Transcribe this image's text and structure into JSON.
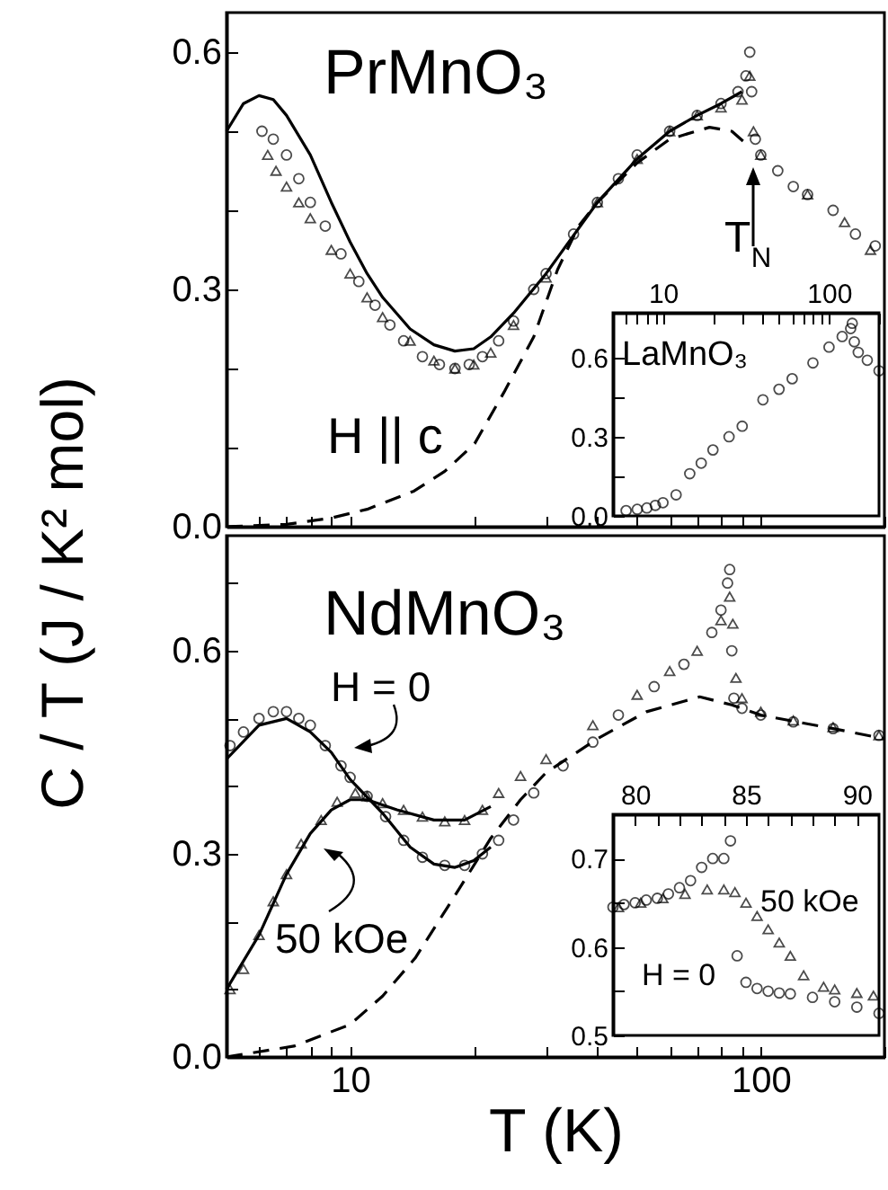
{
  "chart_data": [
    {
      "type": "scatter",
      "title": "PrMnO₃",
      "ylabel": "C / T (J / K² mol)",
      "annotations": [
        "H || c",
        "T$_{N}$"
      ],
      "log": "x",
      "tick_labels": "y",
      "xlim": [
        5,
        200
      ],
      "ylim": [
        0,
        0.65
      ],
      "xticks": [
        {
          "value": 5,
          "label": null
        },
        {
          "value": 6,
          "label": null
        },
        {
          "value": 7,
          "label": null
        },
        {
          "value": 8,
          "label": null
        },
        {
          "value": 9,
          "label": null
        },
        10,
        {
          "value": 20,
          "label": null
        },
        {
          "value": 30,
          "label": null
        },
        {
          "value": 40,
          "label": null
        },
        {
          "value": 50,
          "label": null
        },
        {
          "value": 60,
          "label": null
        },
        {
          "value": 70,
          "label": null
        },
        {
          "value": 80,
          "label": null
        },
        {
          "value": 90,
          "label": null
        },
        100,
        {
          "value": 200,
          "label": null
        }
      ],
      "yticks": [
        {
          "value": 0,
          "label": "0.0"
        },
        {
          "value": 0.1,
          "label": null
        },
        {
          "value": 0.2,
          "label": null
        },
        0.3,
        {
          "value": 0.4,
          "label": null
        },
        {
          "value": 0.5,
          "label": null
        },
        0.6
      ],
      "series": [
        {
          "type": "scatter",
          "marker": "circle",
          "color": "#000000",
          "x": [
            6.1,
            6.5,
            7,
            7.5,
            8,
            8.7,
            9.5,
            10.5,
            11.5,
            12.5,
            13.5,
            15,
            16.5,
            18,
            19.5,
            21,
            23,
            25,
            28,
            30,
            35,
            40,
            45,
            50,
            60,
            70,
            80,
            88,
            92,
            94,
            95,
            97,
            100,
            110,
            120,
            130,
            150,
            170,
            190
          ],
          "values": [
            0.5,
            0.49,
            0.47,
            0.44,
            0.41,
            0.38,
            0.345,
            0.31,
            0.28,
            0.255,
            0.235,
            0.215,
            0.205,
            0.2,
            0.205,
            0.215,
            0.235,
            0.26,
            0.3,
            0.32,
            0.37,
            0.41,
            0.44,
            0.47,
            0.5,
            0.52,
            0.535,
            0.55,
            0.57,
            0.6,
            0.55,
            0.49,
            0.47,
            0.45,
            0.43,
            0.42,
            0.4,
            0.37,
            0.355
          ]
        },
        {
          "type": "scatter",
          "marker": "triangle",
          "color": "#000000",
          "x": [
            6.3,
            6.6,
            7,
            7.5,
            8,
            9,
            10,
            11,
            12,
            14,
            16,
            18,
            20,
            22,
            25,
            30,
            40,
            50,
            60,
            70,
            80,
            90,
            94,
            96,
            100,
            130,
            160,
            185
          ],
          "values": [
            0.47,
            0.45,
            0.43,
            0.41,
            0.39,
            0.35,
            0.32,
            0.29,
            0.265,
            0.235,
            0.21,
            0.2,
            0.205,
            0.22,
            0.255,
            0.315,
            0.41,
            0.465,
            0.5,
            0.52,
            0.53,
            0.54,
            0.57,
            0.5,
            0.47,
            0.42,
            0.385,
            0.35
          ]
        },
        {
          "type": "line",
          "line_style": "solid",
          "color": "#000000",
          "x": [
            5,
            5.5,
            6,
            6.5,
            7,
            8,
            9,
            10,
            11,
            12,
            14,
            16,
            18,
            20,
            22,
            25,
            30,
            40,
            50,
            60,
            70,
            80,
            90
          ],
          "values": [
            0.5,
            0.535,
            0.545,
            0.54,
            0.52,
            0.47,
            0.41,
            0.36,
            0.32,
            0.29,
            0.25,
            0.23,
            0.222,
            0.225,
            0.24,
            0.27,
            0.32,
            0.41,
            0.465,
            0.5,
            0.52,
            0.535,
            0.55
          ]
        },
        {
          "type": "line",
          "line_style": "dashed",
          "color": "#000000",
          "x": [
            5,
            7,
            9,
            11,
            14.3,
            17,
            20.1,
            23.7,
            28,
            32,
            36,
            40,
            50,
            60,
            75,
            85,
            94
          ],
          "values": [
            0,
            0.003,
            0.011,
            0.022,
            0.045,
            0.07,
            0.105,
            0.17,
            0.24,
            0.325,
            0.38,
            0.41,
            0.46,
            0.49,
            0.505,
            0.5,
            0.48
          ]
        }
      ]
    },
    {
      "type": "scatter",
      "title": "LaMnO₃",
      "log": "x",
      "xlim": [
        5,
        200
      ],
      "ylim": [
        0,
        0.77
      ],
      "xticks": [
        {
          "value": 5,
          "label": null
        },
        {
          "value": 6,
          "label": null
        },
        {
          "value": 7,
          "label": null
        },
        {
          "value": 8,
          "label": null
        },
        {
          "value": 9,
          "label": null
        },
        10,
        {
          "value": 20,
          "label": null
        },
        {
          "value": 30,
          "label": null
        },
        {
          "value": 40,
          "label": null
        },
        {
          "value": 50,
          "label": null
        },
        {
          "value": 60,
          "label": null
        },
        {
          "value": 70,
          "label": null
        },
        {
          "value": 80,
          "label": null
        },
        {
          "value": 90,
          "label": null
        },
        100,
        {
          "value": 200,
          "label": null
        }
      ],
      "yticks": [
        {
          "value": 0,
          "label": "0.0"
        },
        {
          "value": 0.15,
          "label": null
        },
        0.3,
        {
          "value": 0.45,
          "label": null
        },
        0.6
      ],
      "series": [
        {
          "type": "scatter",
          "marker": "circle",
          "color": "#000000",
          "x": [
            6,
            7,
            8,
            9,
            10,
            12,
            14.5,
            17,
            20,
            25,
            30,
            40,
            50,
            60,
            80,
            100,
            120,
            135,
            138,
            142,
            150,
            170,
            200
          ],
          "values": [
            0.02,
            0.025,
            0.03,
            0.04,
            0.05,
            0.08,
            0.16,
            0.2,
            0.25,
            0.3,
            0.34,
            0.44,
            0.48,
            0.52,
            0.58,
            0.64,
            0.68,
            0.71,
            0.73,
            0.66,
            0.62,
            0.59,
            0.55
          ]
        }
      ]
    },
    {
      "type": "scatter",
      "title": "NdMnO₃",
      "xlabel": "T (K)",
      "annotations": [
        "H = 0",
        "50 kOe"
      ],
      "log": "x",
      "xlim": [
        5,
        200
      ],
      "ylim": [
        0,
        0.77
      ],
      "xticks": [
        {
          "value": 5,
          "label": null
        },
        {
          "value": 6,
          "label": null
        },
        {
          "value": 7,
          "label": null
        },
        {
          "value": 8,
          "label": null
        },
        {
          "value": 9,
          "label": null
        },
        10,
        {
          "value": 20,
          "label": null
        },
        {
          "value": 30,
          "label": null
        },
        {
          "value": 40,
          "label": null
        },
        {
          "value": 50,
          "label": null
        },
        {
          "value": 60,
          "label": null
        },
        {
          "value": 70,
          "label": null
        },
        {
          "value": 80,
          "label": null
        },
        {
          "value": 90,
          "label": null
        },
        100,
        {
          "value": 200,
          "label": null
        }
      ],
      "yticks": [
        {
          "value": 0,
          "label": "0.0"
        },
        {
          "value": 0.1,
          "label": null
        },
        {
          "value": 0.2,
          "label": null
        },
        0.3,
        {
          "value": 0.4,
          "label": null
        },
        {
          "value": 0.5,
          "label": null
        },
        0.6,
        {
          "value": 0.7,
          "label": null
        }
      ],
      "series": [
        {
          "type": "scatter",
          "marker": "circle",
          "color": "#000000",
          "x": [
            5.1,
            5.5,
            6,
            6.5,
            7,
            7.5,
            8,
            8.7,
            9.5,
            10,
            11,
            12.2,
            13.5,
            15,
            17,
            19,
            21,
            23,
            25,
            28,
            33,
            39,
            45,
            55,
            65,
            76,
            80,
            83,
            84,
            85,
            86,
            90,
            100,
            120,
            150,
            194
          ],
          "values": [
            0.46,
            0.48,
            0.5,
            0.51,
            0.51,
            0.5,
            0.49,
            0.46,
            0.43,
            0.413,
            0.385,
            0.355,
            0.32,
            0.295,
            0.283,
            0.283,
            0.3,
            0.32,
            0.35,
            0.39,
            0.43,
            0.465,
            0.505,
            0.547,
            0.58,
            0.627,
            0.66,
            0.7,
            0.72,
            0.6,
            0.53,
            0.515,
            0.505,
            0.495,
            0.485,
            0.475
          ]
        },
        {
          "type": "scatter",
          "marker": "triangle",
          "color": "#000000",
          "x": [
            5.1,
            5.5,
            6,
            6.5,
            7,
            7.6,
            8.5,
            9.3,
            10.3,
            11,
            12,
            13.5,
            15,
            17,
            19,
            21,
            23,
            26,
            30,
            39,
            50,
            60,
            70,
            80,
            84,
            85.5,
            87,
            90,
            100,
            120,
            150,
            194
          ],
          "values": [
            0.1,
            0.13,
            0.18,
            0.23,
            0.27,
            0.315,
            0.35,
            0.377,
            0.39,
            0.385,
            0.375,
            0.365,
            0.355,
            0.348,
            0.35,
            0.365,
            0.39,
            0.415,
            0.44,
            0.49,
            0.535,
            0.57,
            0.6,
            0.645,
            0.68,
            0.64,
            0.56,
            0.53,
            0.51,
            0.497,
            0.487,
            0.475
          ]
        },
        {
          "type": "line",
          "line_style": "solid",
          "color": "#000000",
          "x": [
            5,
            6,
            7,
            8,
            9,
            10,
            12,
            14,
            16,
            18,
            20,
            22
          ],
          "values": [
            0.44,
            0.49,
            0.5,
            0.48,
            0.45,
            0.41,
            0.36,
            0.31,
            0.285,
            0.28,
            0.29,
            0.31
          ]
        },
        {
          "type": "line",
          "line_style": "solid",
          "color": "#000000",
          "x": [
            5,
            6,
            7,
            8,
            9,
            10,
            11,
            13,
            16,
            19,
            22
          ],
          "values": [
            0.1,
            0.18,
            0.27,
            0.33,
            0.365,
            0.38,
            0.38,
            0.365,
            0.35,
            0.35,
            0.37
          ]
        },
        {
          "type": "line",
          "line_style": "dashed",
          "color": "#000000",
          "x": [
            5,
            7.3,
            10,
            12,
            14.4,
            18.2,
            22,
            26,
            30,
            40,
            52.7,
            71,
            85,
            100,
            150,
            200
          ],
          "values": [
            0,
            0.016,
            0.048,
            0.09,
            0.146,
            0.243,
            0.323,
            0.38,
            0.42,
            0.47,
            0.51,
            0.532,
            0.52,
            0.505,
            0.485,
            0.47
          ]
        }
      ]
    },
    {
      "type": "scatter",
      "annotations": [
        "50 kOe",
        "H = 0"
      ],
      "xlim": [
        79,
        91
      ],
      "ylim": [
        0.5,
        0.75
      ],
      "xticks": [
        {
          "value": 80,
          "label": "80"
        },
        {
          "value": 81,
          "label": null
        },
        {
          "value": 82,
          "label": null
        },
        {
          "value": 83,
          "label": null
        },
        {
          "value": 84,
          "label": null
        },
        85,
        {
          "value": 86,
          "label": null
        },
        {
          "value": 87,
          "label": null
        },
        {
          "value": 88,
          "label": null
        },
        {
          "value": 89,
          "label": null
        },
        90
      ],
      "yticks": [
        0.5,
        {
          "value": 0.55,
          "label": null
        },
        0.6,
        {
          "value": 0.65,
          "label": null
        },
        0.7
      ],
      "series": [
        {
          "type": "scatter",
          "marker": "circle",
          "color": "#000000",
          "x": [
            79,
            79.5,
            80,
            80.5,
            81,
            81.5,
            82,
            82.5,
            83,
            83.5,
            84,
            84.3,
            84.6,
            85,
            85.5,
            86,
            86.5,
            87,
            88,
            89,
            90,
            91
          ],
          "values": [
            0.645,
            0.648,
            0.65,
            0.653,
            0.655,
            0.66,
            0.667,
            0.675,
            0.69,
            0.7,
            0.7,
            0.72,
            0.59,
            0.56,
            0.553,
            0.55,
            0.548,
            0.547,
            0.543,
            0.538,
            0.532,
            0.525
          ]
        },
        {
          "type": "scatter",
          "marker": "triangle",
          "color": "#000000",
          "x": [
            79.25,
            80.25,
            81.25,
            82.25,
            83.25,
            84,
            84.5,
            85,
            85.5,
            86,
            86.5,
            87,
            87.6,
            88.5,
            89,
            90,
            90.75
          ],
          "values": [
            0.645,
            0.65,
            0.655,
            0.66,
            0.665,
            0.665,
            0.662,
            0.65,
            0.635,
            0.62,
            0.605,
            0.59,
            0.568,
            0.555,
            0.552,
            0.548,
            0.545
          ]
        }
      ]
    }
  ]
}
